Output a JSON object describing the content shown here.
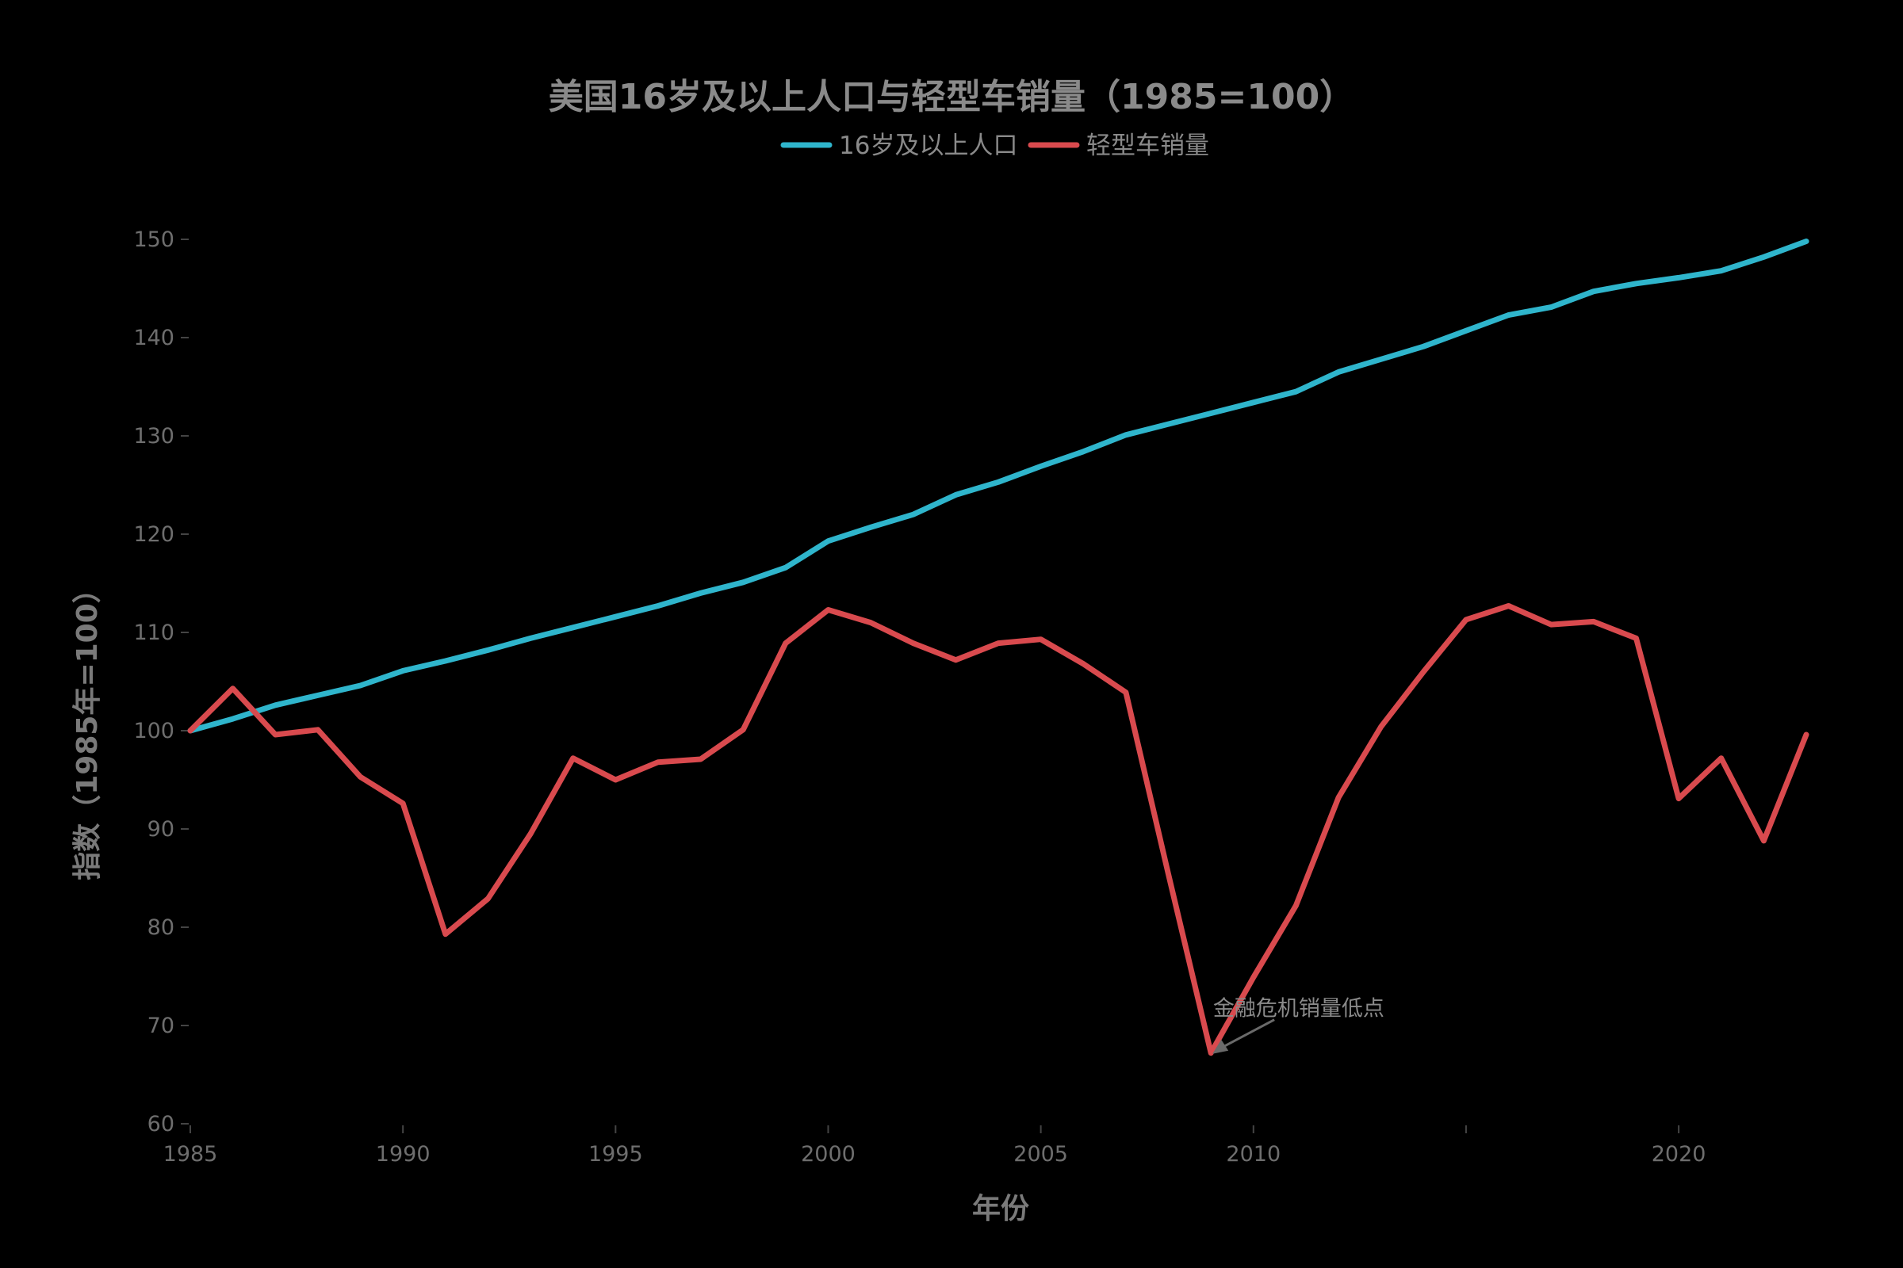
{
  "chart_data": {
    "type": "line",
    "title": "美国16岁及以上人口与轻型车销量（1985=100）",
    "xlabel": "年份",
    "ylabel": "指数（1985年=100）",
    "xlim": [
      1985,
      2023
    ],
    "ylim": [
      60,
      150
    ],
    "x_ticks": [
      1985,
      1990,
      1995,
      2000,
      2005,
      2010,
      2015,
      2020
    ],
    "x_tick_labels": [
      "1985",
      "1990",
      "1995",
      "2000",
      "2005",
      "2010",
      "",
      "2020"
    ],
    "y_ticks": [
      60,
      70,
      80,
      90,
      100,
      110,
      120,
      130,
      140,
      150
    ],
    "grid": false,
    "legend_position": "top-center",
    "x": [
      1985,
      1986,
      1987,
      1988,
      1989,
      1990,
      1991,
      1992,
      1993,
      1994,
      1995,
      1996,
      1997,
      1998,
      1999,
      2000,
      2001,
      2002,
      2003,
      2004,
      2005,
      2006,
      2007,
      2008,
      2009,
      2010,
      2011,
      2012,
      2013,
      2014,
      2015,
      2016,
      2017,
      2018,
      2019,
      2020,
      2021,
      2022,
      2023
    ],
    "series": [
      {
        "name": "16岁及以上人口",
        "color": "#2fb5cc",
        "values": [
          100.0,
          101.2,
          102.6,
          103.6,
          104.6,
          106.1,
          107.1,
          108.2,
          109.4,
          110.5,
          111.6,
          112.7,
          114.0,
          115.1,
          116.6,
          119.3,
          120.7,
          122.0,
          124.0,
          125.3,
          126.9,
          128.4,
          130.1,
          131.2,
          132.3,
          133.4,
          134.5,
          136.5,
          137.8,
          139.1,
          140.7,
          142.3,
          143.1,
          144.7,
          145.5,
          146.1,
          146.8,
          148.2,
          149.8
        ]
      },
      {
        "name": "轻型车销量",
        "color": "#d94a4e",
        "values": [
          100.0,
          104.3,
          99.6,
          100.1,
          95.3,
          92.6,
          79.3,
          82.9,
          89.5,
          97.2,
          95.0,
          96.8,
          97.1,
          100.1,
          108.9,
          112.3,
          111.0,
          108.9,
          107.2,
          108.9,
          109.3,
          106.8,
          103.9,
          85.4,
          67.2,
          74.9,
          82.2,
          93.2,
          100.4,
          106.0,
          111.3,
          112.7,
          110.8,
          111.1,
          109.4,
          93.1,
          97.2,
          88.8,
          99.6
        ]
      }
    ],
    "annotations": [
      {
        "text": "金融危机销量低点",
        "x": 2009,
        "y": 67.2,
        "text_x": 2011,
        "text_y": 71.0
      }
    ]
  }
}
